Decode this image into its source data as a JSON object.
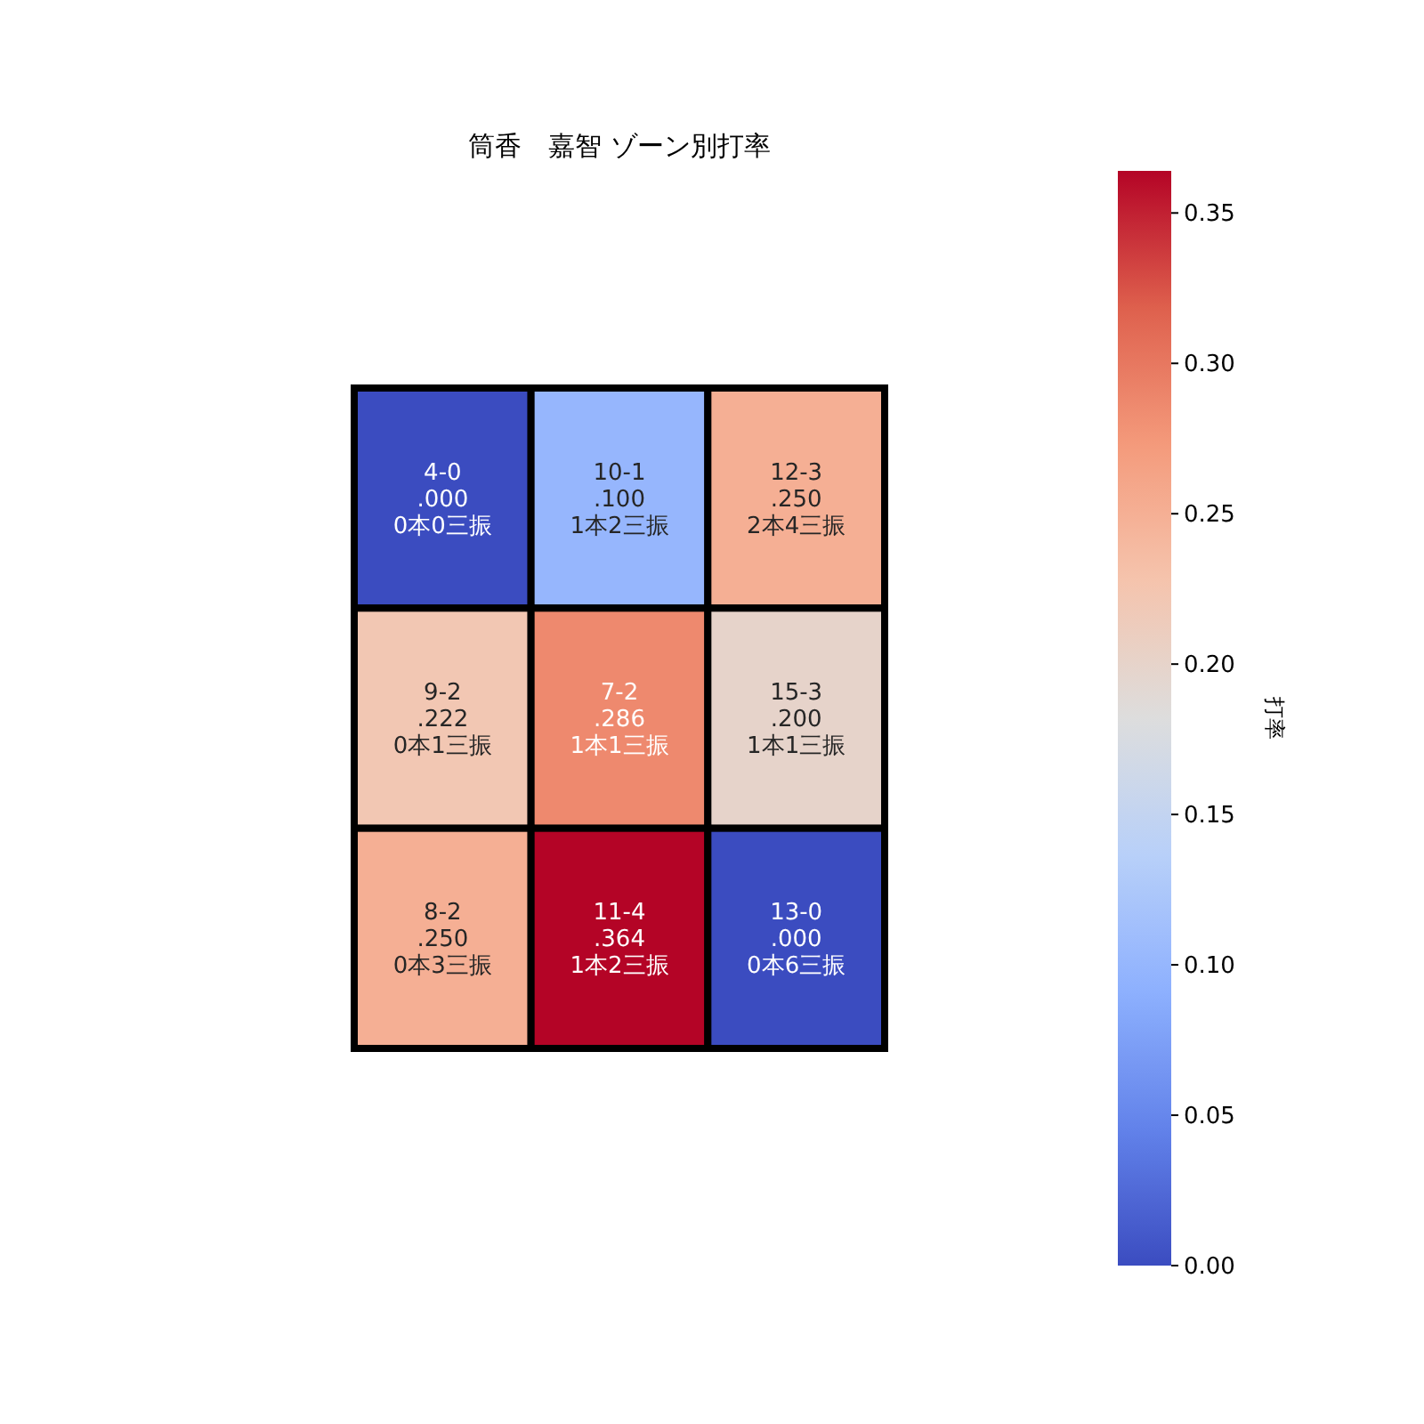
{
  "chart_data": {
    "type": "heatmap",
    "title": "筒香　嘉智 ゾーン別打率",
    "clabel": "打率",
    "categories": [
      null,
      null,
      null
    ],
    "y_categories": [
      null,
      null,
      null
    ],
    "cells": [
      [
        0.0,
        0.1,
        0.25
      ],
      [
        0.222,
        0.286,
        0.2
      ],
      [
        0.25,
        0.364,
        0.0
      ]
    ],
    "cell_labels": [
      [
        "4-0\n.000\n0本0三振",
        "10-1\n.100\n1本2三振",
        "12-3\n.250\n2本4三振"
      ],
      [
        "9-2\n.222\n0本1三振",
        "7-2\n.286\n1本1三振",
        "15-3\n.200\n1本1三振"
      ],
      [
        "8-2\n.250\n0本3三振",
        "11-4\n.364\n1本2三振",
        "13-0\n.000\n0本6三振"
      ]
    ],
    "clim": [
      0,
      0.364
    ],
    "cticks": [
      {
        "value": 0,
        "label": "0.00"
      },
      {
        "value": 0.05,
        "label": "0.05"
      },
      {
        "value": 0.1,
        "label": "0.10"
      },
      {
        "value": 0.15,
        "label": "0.15"
      },
      {
        "value": 0.2,
        "label": "0.20"
      },
      {
        "value": 0.25,
        "label": "0.25"
      },
      {
        "value": 0.3,
        "label": "0.30"
      },
      {
        "value": 0.35,
        "label": "0.35"
      }
    ]
  }
}
